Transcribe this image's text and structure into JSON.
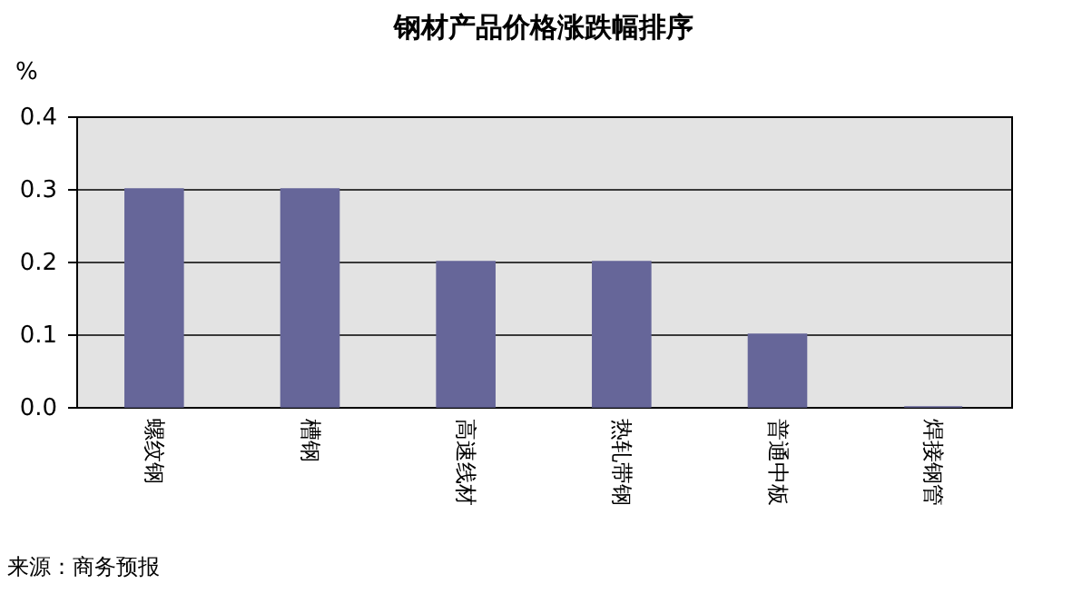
{
  "chart_data": {
    "type": "bar",
    "title": "钢材产品价格涨跌幅排序",
    "ylabel": "%",
    "categories": [
      "螺纹钢",
      "槽钢",
      "高速线材",
      "热轧带钢",
      "普通中板",
      "焊接钢管"
    ],
    "values": [
      0.3,
      0.3,
      0.2,
      0.2,
      0.1,
      0
    ],
    "color": "#666699",
    "ylim": [
      0,
      0.4
    ],
    "yticks": [
      {
        "value": 0,
        "label": "0.0"
      },
      0.1,
      0.2,
      0.3,
      0.4
    ],
    "grid": "y",
    "annotations": [
      "来源：商务预报"
    ]
  }
}
